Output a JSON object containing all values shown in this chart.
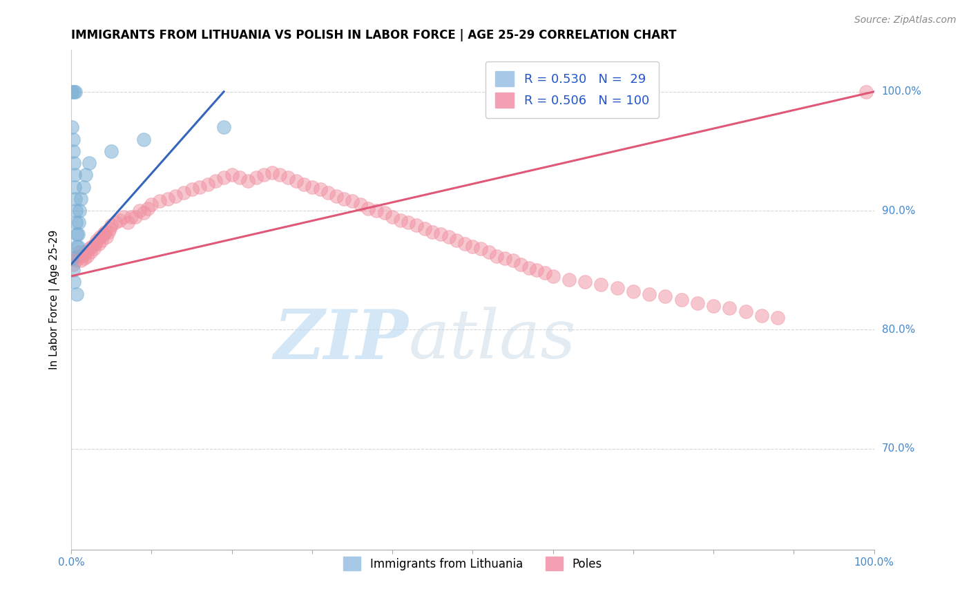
{
  "title": "IMMIGRANTS FROM LITHUANIA VS POLISH IN LABOR FORCE | AGE 25-29 CORRELATION CHART",
  "source": "Source: ZipAtlas.com",
  "ylabel": "In Labor Force | Age 25-29",
  "ylabel_right_labels": [
    "100.0%",
    "90.0%",
    "80.0%",
    "70.0%"
  ],
  "ylabel_right_values": [
    1.0,
    0.9,
    0.8,
    0.7
  ],
  "xlim": [
    0.0,
    1.0
  ],
  "ylim": [
    0.615,
    1.035
  ],
  "blue_color": "#7bafd4",
  "pink_color": "#f090a0",
  "blue_line_color": "#3366bb",
  "pink_line_color": "#e05878",
  "blue_R": 0.53,
  "blue_N": 29,
  "pink_R": 0.506,
  "pink_N": 100,
  "blue_scatter_x": [
    0.001,
    0.003,
    0.005,
    0.001,
    0.002,
    0.002,
    0.003,
    0.004,
    0.004,
    0.005,
    0.006,
    0.006,
    0.007,
    0.007,
    0.008,
    0.008,
    0.009,
    0.01,
    0.012,
    0.015,
    0.018,
    0.022,
    0.05,
    0.09,
    0.19,
    0.001,
    0.002,
    0.003,
    0.007
  ],
  "blue_scatter_y": [
    1.0,
    1.0,
    1.0,
    0.97,
    0.96,
    0.95,
    0.94,
    0.93,
    0.92,
    0.91,
    0.9,
    0.89,
    0.88,
    0.87,
    0.87,
    0.88,
    0.89,
    0.9,
    0.91,
    0.92,
    0.93,
    0.94,
    0.95,
    0.96,
    0.97,
    0.86,
    0.85,
    0.84,
    0.83
  ],
  "pink_scatter_x": [
    0.002,
    0.004,
    0.006,
    0.008,
    0.01,
    0.012,
    0.014,
    0.016,
    0.018,
    0.02,
    0.022,
    0.024,
    0.026,
    0.028,
    0.03,
    0.032,
    0.034,
    0.036,
    0.038,
    0.04,
    0.042,
    0.044,
    0.046,
    0.048,
    0.05,
    0.055,
    0.06,
    0.065,
    0.07,
    0.075,
    0.08,
    0.085,
    0.09,
    0.095,
    0.1,
    0.11,
    0.12,
    0.13,
    0.14,
    0.15,
    0.16,
    0.17,
    0.18,
    0.19,
    0.2,
    0.21,
    0.22,
    0.23,
    0.24,
    0.25,
    0.26,
    0.27,
    0.28,
    0.29,
    0.3,
    0.31,
    0.32,
    0.33,
    0.34,
    0.35,
    0.36,
    0.37,
    0.38,
    0.39,
    0.4,
    0.41,
    0.42,
    0.43,
    0.44,
    0.45,
    0.46,
    0.47,
    0.48,
    0.49,
    0.5,
    0.51,
    0.52,
    0.53,
    0.54,
    0.55,
    0.56,
    0.57,
    0.58,
    0.59,
    0.6,
    0.62,
    0.64,
    0.66,
    0.68,
    0.7,
    0.72,
    0.74,
    0.76,
    0.78,
    0.8,
    0.82,
    0.84,
    0.86,
    0.88,
    0.99
  ],
  "pink_scatter_y": [
    0.855,
    0.86,
    0.858,
    0.862,
    0.865,
    0.858,
    0.862,
    0.86,
    0.865,
    0.862,
    0.868,
    0.865,
    0.87,
    0.868,
    0.872,
    0.875,
    0.872,
    0.878,
    0.875,
    0.88,
    0.882,
    0.878,
    0.882,
    0.885,
    0.888,
    0.89,
    0.892,
    0.895,
    0.89,
    0.895,
    0.895,
    0.9,
    0.898,
    0.902,
    0.905,
    0.908,
    0.91,
    0.912,
    0.915,
    0.918,
    0.92,
    0.922,
    0.925,
    0.928,
    0.93,
    0.928,
    0.925,
    0.928,
    0.93,
    0.932,
    0.93,
    0.928,
    0.925,
    0.922,
    0.92,
    0.918,
    0.915,
    0.912,
    0.91,
    0.908,
    0.905,
    0.902,
    0.9,
    0.898,
    0.895,
    0.892,
    0.89,
    0.888,
    0.885,
    0.882,
    0.88,
    0.878,
    0.875,
    0.872,
    0.87,
    0.868,
    0.865,
    0.862,
    0.86,
    0.858,
    0.855,
    0.852,
    0.85,
    0.848,
    0.845,
    0.842,
    0.84,
    0.838,
    0.835,
    0.832,
    0.83,
    0.828,
    0.825,
    0.822,
    0.82,
    0.818,
    0.815,
    0.812,
    0.81,
    1.0
  ],
  "pink_line_x": [
    0.0,
    1.0
  ],
  "pink_line_y": [
    0.845,
    1.0
  ],
  "blue_line_x": [
    0.0,
    0.19
  ],
  "blue_line_y": [
    0.855,
    1.0
  ]
}
